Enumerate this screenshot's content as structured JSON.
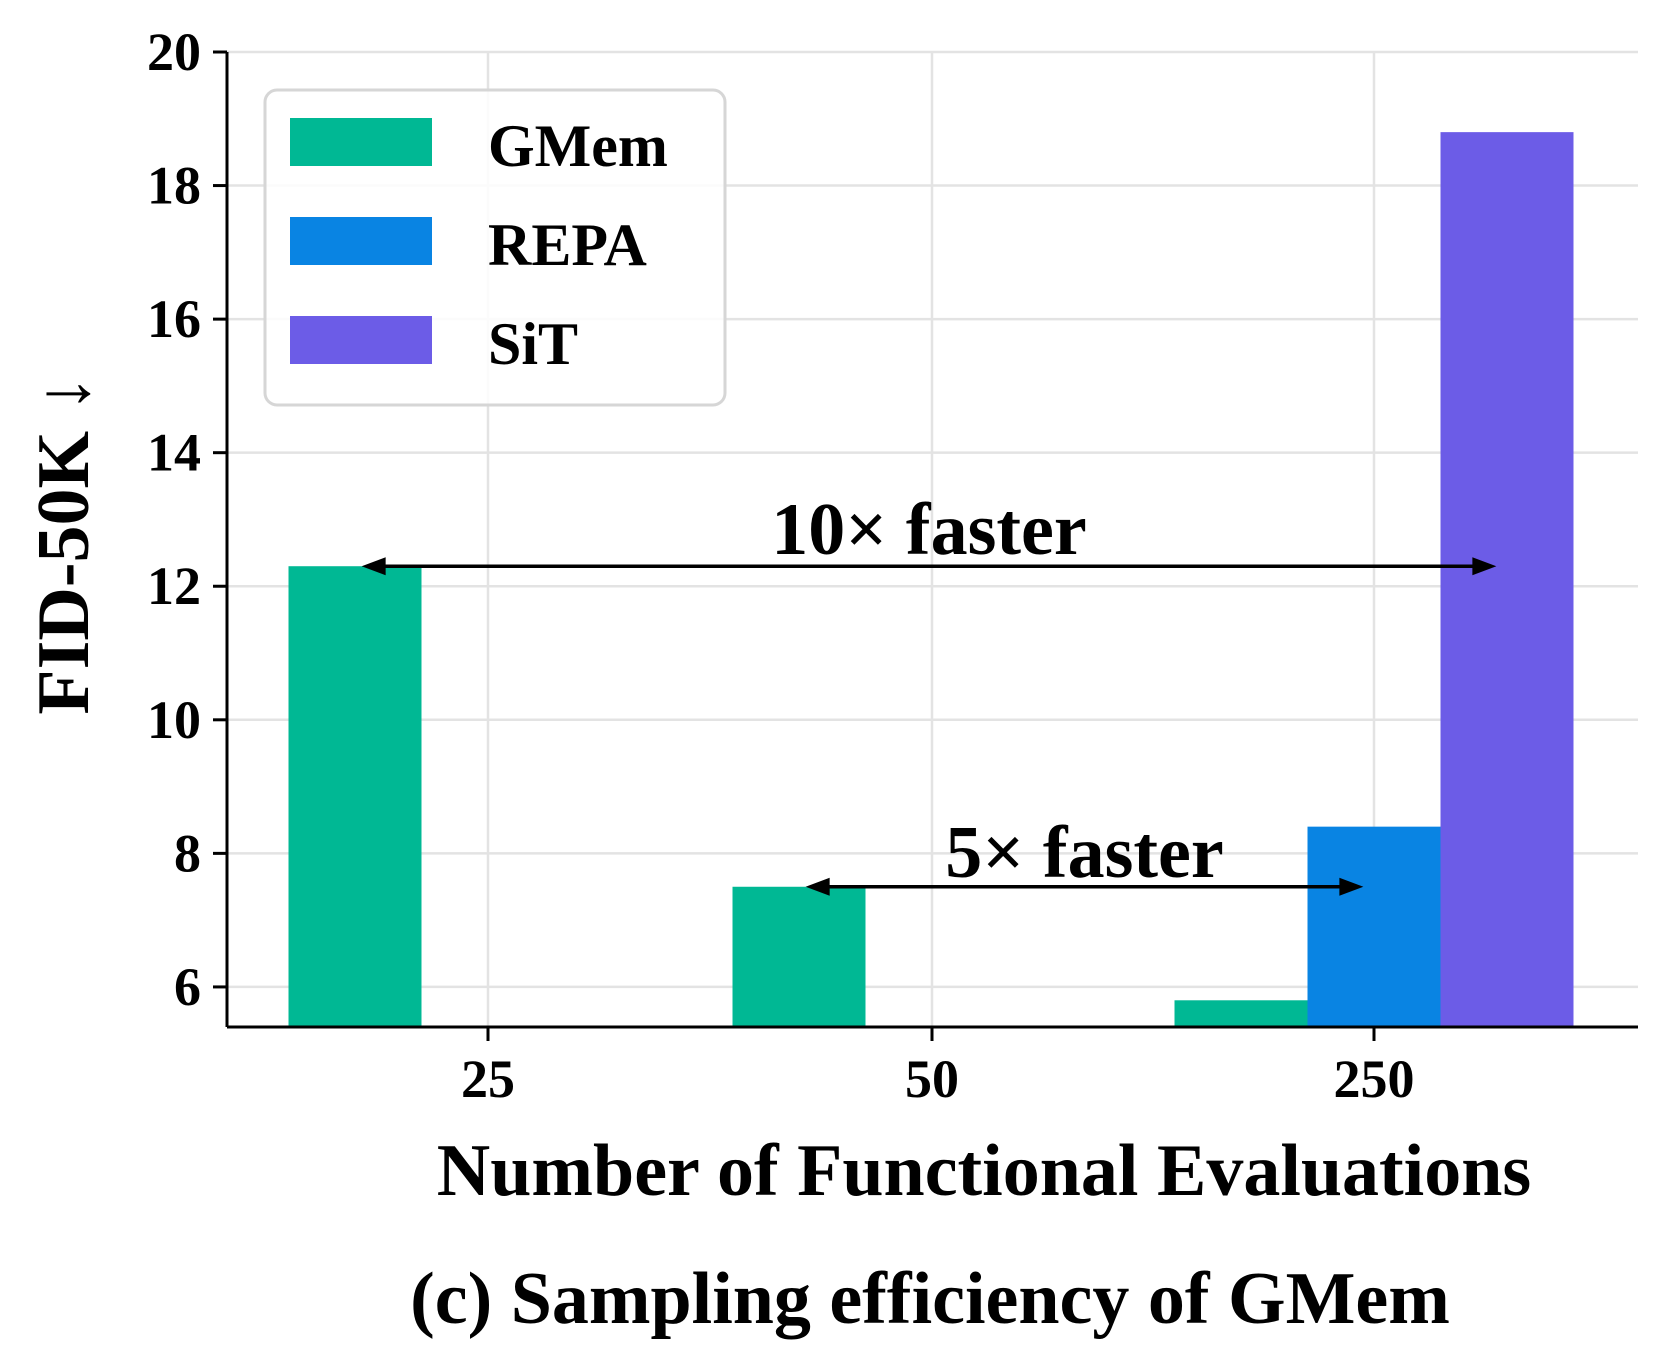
{
  "chart_data": {
    "type": "bar",
    "categories": [
      "25",
      "50",
      "250"
    ],
    "series": [
      {
        "name": "GMem",
        "color": "#00B894",
        "values": [
          12.3,
          7.5,
          5.8
        ]
      },
      {
        "name": "REPA",
        "color": "#0984E3",
        "values": [
          null,
          null,
          8.4
        ]
      },
      {
        "name": "SiT",
        "color": "#6C5CE7",
        "values": [
          null,
          null,
          18.8
        ]
      }
    ],
    "xlabel": "Number of Functional Evaluations",
    "ylabel": "FID-50K ↓",
    "ylim": [
      5.4,
      20
    ],
    "yticks": [
      6,
      8,
      10,
      12,
      14,
      16,
      18,
      20
    ],
    "grid": true,
    "legend_position": "top-left",
    "caption": "(c) Sampling efficiency of GMem",
    "annotations": [
      {
        "text": "10× faster",
        "arrow_from": {
          "category": "25",
          "series": "GMem",
          "value": 12.3
        },
        "arrow_to": {
          "category": "250",
          "series": "SiT",
          "value": 12.3
        }
      },
      {
        "text": "5× faster",
        "arrow_from": {
          "category": "50",
          "series": "GMem",
          "value": 7.5
        },
        "arrow_to": {
          "category": "250",
          "series": "REPA",
          "value": 7.5
        }
      }
    ]
  }
}
